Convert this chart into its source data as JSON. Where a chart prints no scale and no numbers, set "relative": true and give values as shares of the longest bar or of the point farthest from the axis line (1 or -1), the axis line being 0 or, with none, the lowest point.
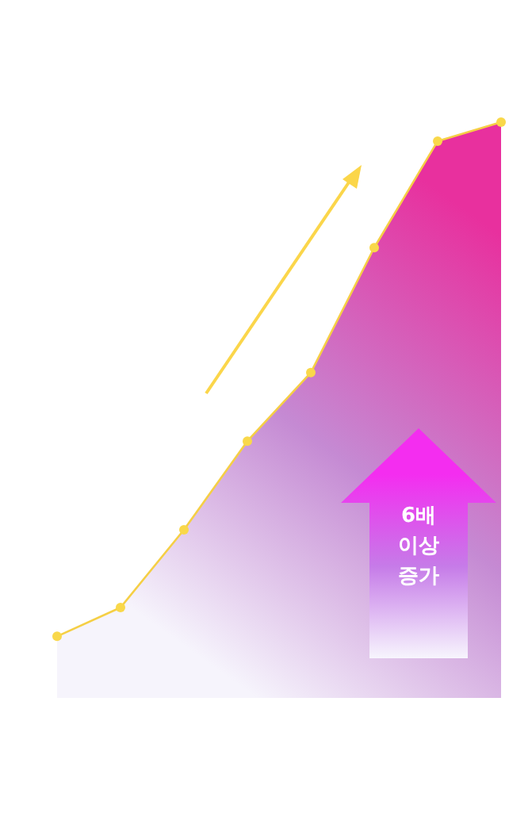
{
  "chart_data": {
    "type": "area",
    "relative": true,
    "categories": [
      null,
      null,
      null,
      null,
      null,
      null,
      null,
      null
    ],
    "series": [
      {
        "color": "#e8309e",
        "values": [
          0.107,
          0.157,
          0.292,
          0.446,
          0.565,
          0.782,
          0.967,
          1
        ]
      }
    ],
    "marker": "circle",
    "grid": false,
    "annotations": [
      "6배 이상 증가"
    ]
  }
}
